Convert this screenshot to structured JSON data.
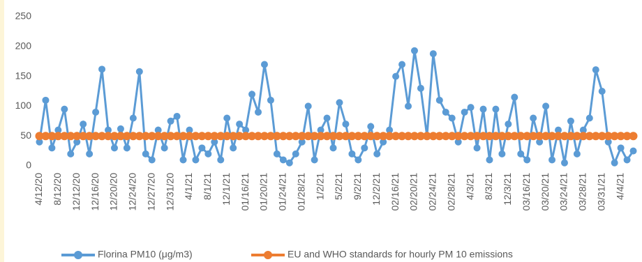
{
  "chart_data": {
    "type": "line",
    "categories": [
      "4/12/20",
      null,
      null,
      "8/12/20",
      null,
      null,
      "12/12/20",
      null,
      null,
      "12/16/20",
      null,
      null,
      "12/20/20",
      null,
      null,
      "12/24/20",
      null,
      null,
      "12/27/20",
      null,
      null,
      "12/31/20",
      null,
      null,
      "4/1/21",
      null,
      null,
      "8/1/21",
      null,
      null,
      "12/1/21",
      null,
      null,
      "01/16/21",
      null,
      null,
      "01/20/21",
      null,
      null,
      "01/24/21",
      null,
      null,
      "01/28/21",
      null,
      null,
      "1/2/21",
      null,
      null,
      "5/2/21",
      null,
      null,
      "9/2/21",
      null,
      null,
      "12/2/21",
      null,
      null,
      "02/16/21",
      null,
      null,
      "02/20/21",
      null,
      null,
      "02/24/21",
      null,
      null,
      "02/28/21",
      null,
      null,
      "4/3/21",
      null,
      null,
      "8/3/21",
      null,
      null,
      "12/3/21",
      null,
      null,
      "03/16/21",
      null,
      null,
      "03/20/21",
      null,
      null,
      "03/24/21",
      null,
      null,
      "03/28/21",
      null,
      null,
      "03/31/21",
      null,
      null,
      "4/4/21",
      null,
      null
    ],
    "series": [
      {
        "name": "Florina PM10 (μg/m3)",
        "color": "#5b9bd5",
        "values": [
          40,
          110,
          30,
          60,
          95,
          20,
          40,
          70,
          20,
          90,
          162,
          60,
          30,
          62,
          30,
          80,
          158,
          20,
          10,
          60,
          30,
          75,
          83,
          10,
          60,
          10,
          30,
          20,
          40,
          10,
          80,
          30,
          70,
          60,
          120,
          90,
          170,
          110,
          20,
          10,
          5,
          20,
          40,
          100,
          10,
          60,
          80,
          30,
          106,
          70,
          20,
          10,
          30,
          66,
          20,
          40,
          60,
          150,
          170,
          100,
          193,
          130,
          50,
          188,
          110,
          90,
          80,
          40,
          90,
          98,
          30,
          95,
          10,
          95,
          20,
          70,
          115,
          20,
          10,
          80,
          40,
          100,
          10,
          60,
          5,
          75,
          20,
          60,
          80,
          161,
          125,
          40,
          5,
          30,
          10,
          25
        ]
      },
      {
        "name": "EU and WHO standards for hourly PM 10 emissions",
        "color": "#ed7d31",
        "values": [
          50,
          50,
          50,
          50,
          50,
          50,
          50,
          50,
          50,
          50,
          50,
          50,
          50,
          50,
          50,
          50,
          50,
          50,
          50,
          50,
          50,
          50,
          50,
          50,
          50,
          50,
          50,
          50,
          50,
          50,
          50,
          50,
          50,
          50,
          50,
          50,
          50,
          50,
          50,
          50,
          50,
          50,
          50,
          50,
          50,
          50,
          50,
          50,
          50,
          50,
          50,
          50,
          50,
          50,
          50,
          50,
          50,
          50,
          50,
          50,
          50,
          50,
          50,
          50,
          50,
          50,
          50,
          50,
          50,
          50,
          50,
          50,
          50,
          50,
          50,
          50,
          50,
          50,
          50,
          50,
          50,
          50,
          50,
          50,
          50,
          50,
          50,
          50,
          50,
          50,
          50,
          50,
          50,
          50,
          50,
          50
        ]
      }
    ],
    "ylim": [
      0,
      250
    ],
    "yticks": [
      0,
      50,
      100,
      150,
      200,
      250
    ],
    "grid": false,
    "legend": "bottom"
  }
}
